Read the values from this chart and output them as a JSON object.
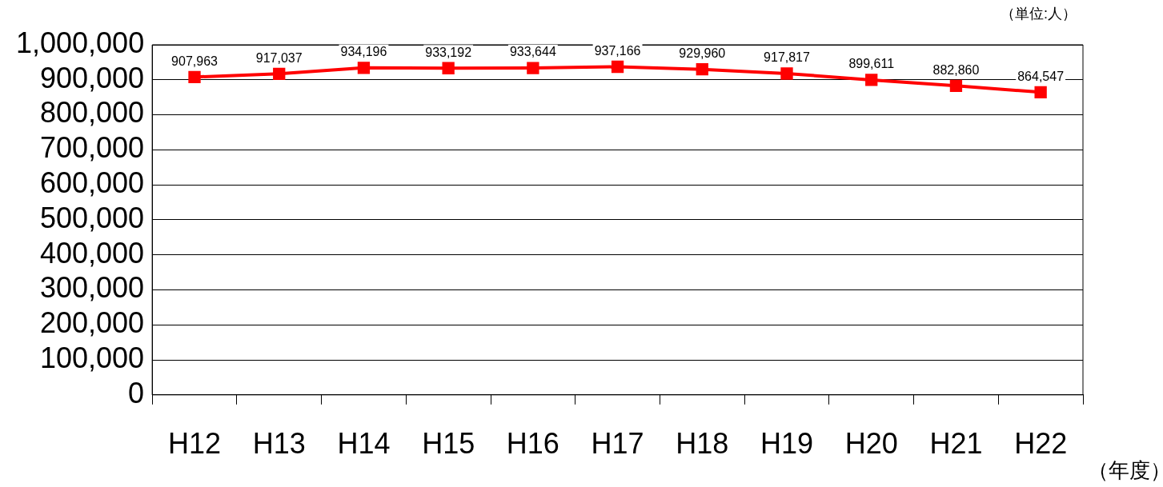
{
  "chart_data": {
    "type": "line",
    "ylabel": "（単位:人）",
    "xlabel": "（年度）",
    "categories": [
      "H12",
      "H13",
      "H14",
      "H15",
      "H16",
      "H17",
      "H18",
      "H19",
      "H20",
      "H21",
      "H22"
    ],
    "series": [
      {
        "color": "#ff0000",
        "values": [
          907963,
          917037,
          934196,
          933192,
          933644,
          937166,
          929960,
          917817,
          899611,
          882860,
          864547
        ],
        "value_labels": [
          "907,963",
          "917,037",
          "934,196",
          "933,192",
          "933,644",
          "937,166",
          "929,960",
          "917,817",
          "899,611",
          "882,860",
          "864,547"
        ]
      }
    ],
    "ylim": [
      0,
      1000000
    ],
    "yticks": [
      0,
      {
        "value": 100000,
        "label": "100,000"
      },
      {
        "value": 200000,
        "label": "200,000"
      },
      {
        "value": 300000,
        "label": "300,000"
      },
      {
        "value": 400000,
        "label": "400,000"
      },
      {
        "value": 500000,
        "label": "500,000"
      },
      {
        "value": 600000,
        "label": "600,000"
      },
      {
        "value": 700000,
        "label": "700,000"
      },
      {
        "value": 800000,
        "label": "800,000"
      },
      {
        "value": 900000,
        "label": "900,000"
      },
      {
        "value": 1000000,
        "label": "1,000,000"
      }
    ],
    "grid": "y",
    "legend": false,
    "marker": "square",
    "line_style": "solid"
  }
}
